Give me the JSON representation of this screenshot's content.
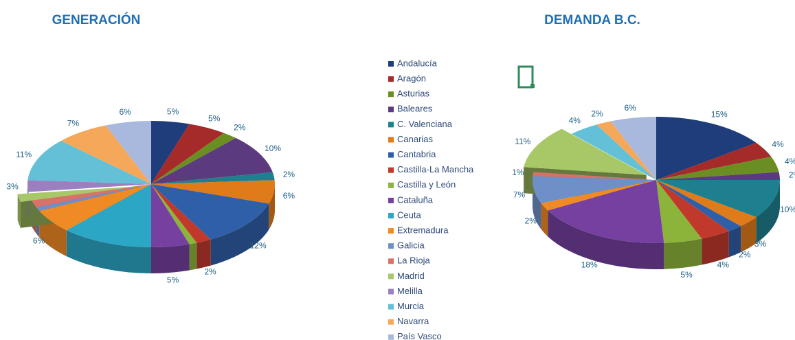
{
  "chart_data": [
    {
      "type": "pie3d",
      "title": "GENERACIÓN",
      "categories": [
        "Andalucía",
        "Aragón",
        "Asturias",
        "Baleares",
        "C. Valenciana",
        "Canarias",
        "Cantabria",
        "Castilla-La Mancha",
        "Castilla y León",
        "Cataluña",
        "Ceuta",
        "Extremadura",
        "Galicia",
        "La Rioja",
        "Madrid",
        "Melilla",
        "Murcia",
        "Navarra",
        "País Vasco"
      ],
      "colors": [
        "#1F3D7A",
        "#A52A2A",
        "#6B8E23",
        "#5B3A80",
        "#1E7F8E",
        "#E07B1A",
        "#2F5FA8",
        "#C0392B",
        "#8DB43A",
        "#7540A0",
        "#2BA6C4",
        "#F08A24",
        "#6F8FC8",
        "#D9716B",
        "#A8C868",
        "#9A80BE",
        "#63C0D6",
        "#F5A85A",
        "#A9B9DD"
      ],
      "values": [
        5,
        5,
        2,
        10,
        2,
        6,
        12,
        2,
        1,
        5,
        12,
        6,
        1,
        2,
        2,
        3,
        11,
        7,
        6
      ],
      "value_labels": [
        "5%",
        "5%",
        "2%",
        "10%",
        "2%",
        "6%",
        "12%",
        "2%",
        null,
        "5%",
        null,
        "6%",
        null,
        null,
        null,
        "3%",
        "11%",
        "7%",
        "6%"
      ],
      "explode": [
        "Madrid"
      ]
    },
    {
      "type": "pie3d",
      "title": "DEMANDA B.C.",
      "categories": [
        "Andalucía",
        "Aragón",
        "Asturias",
        "Baleares",
        "C. Valenciana",
        "Canarias",
        "Cantabria",
        "Castilla-La Mancha",
        "Castilla y León",
        "Cataluña",
        "Ceuta",
        "Extremadura",
        "Galicia",
        "La Rioja",
        "Madrid",
        "Melilla",
        "Murcia",
        "Navarra",
        "País Vasco"
      ],
      "colors": [
        "#1F3D7A",
        "#A52A2A",
        "#6B8E23",
        "#5B3A80",
        "#1E7F8E",
        "#E07B1A",
        "#2F5FA8",
        "#C0392B",
        "#8DB43A",
        "#7540A0",
        "#2BA6C4",
        "#F08A24",
        "#6F8FC8",
        "#D9716B",
        "#A8C868",
        "#9A80BE",
        "#63C0D6",
        "#F5A85A",
        "#A9B9DD"
      ],
      "values": [
        15,
        4,
        4,
        2,
        10,
        3,
        2,
        4,
        5,
        18,
        0,
        2,
        7,
        1,
        11,
        0,
        4,
        2,
        6
      ],
      "value_labels": [
        "15%",
        "4%",
        "4%",
        "2%",
        "10%",
        "3%",
        "2%",
        "4%",
        "5%",
        "18%",
        null,
        "2%",
        "7%",
        "1%",
        "11%",
        null,
        "4%",
        "2%",
        "6%"
      ],
      "explode": [
        "Madrid"
      ]
    }
  ]
}
